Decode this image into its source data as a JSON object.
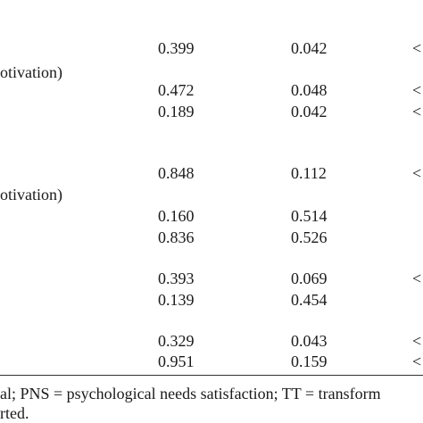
{
  "table": {
    "rows": [
      {
        "label": "",
        "b": "0.399",
        "se": "0.042",
        "p": "<"
      },
      {
        "label": "otivation)",
        "b": "",
        "se": "",
        "p": ""
      },
      {
        "label": "",
        "b": "0.472",
        "se": "0.048",
        "p": "<"
      },
      {
        "label": "",
        "b": "0.189",
        "se": "0.042",
        "p": "<"
      },
      {
        "label": "",
        "b": "0.848",
        "se": "0.112",
        "p": "<"
      },
      {
        "label": "otivation)",
        "b": "",
        "se": "",
        "p": ""
      },
      {
        "label": "",
        "b": "0.160",
        "se": "0.514",
        "p": ""
      },
      {
        "label": "",
        "b": "0.836",
        "se": "0.526",
        "p": ""
      },
      {
        "label": "",
        "b": "0.393",
        "se": "0.069",
        "p": "<"
      },
      {
        "label": "",
        "b": "0.139",
        "se": "0.454",
        "p": ""
      },
      {
        "label": "",
        "b": "0.329",
        "se": "0.043",
        "p": "<"
      },
      {
        "label": "",
        "b": "0.951",
        "se": "0.159",
        "p": "<"
      }
    ]
  },
  "footnote": {
    "line1": "al; PNS = psychological needs satisfaction; TT = transform",
    "line2": "rted."
  }
}
